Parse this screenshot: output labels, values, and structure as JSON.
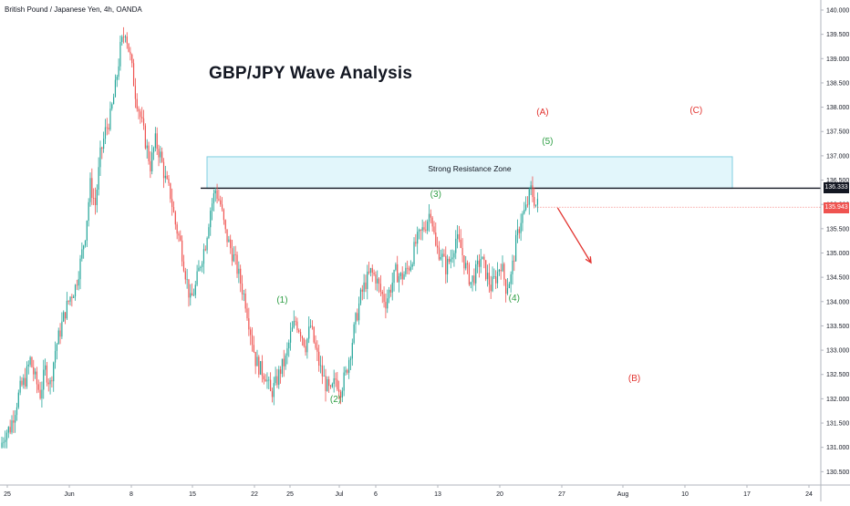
{
  "header": {
    "symbol_title": "British Pound / Japanese Yen, 4h, OANDA"
  },
  "annotation": {
    "title": "GBP/JPY Wave Analysis",
    "zone_label": "Strong Resistance Zone"
  },
  "price_tags": {
    "resistance": "136.333",
    "last": "135.943"
  },
  "colors": {
    "up": "#26a69a",
    "down": "#ef5350",
    "wave_green": "#2e9e44",
    "wave_red": "#e2332f",
    "zone_fill": "#e2f6fb",
    "zone_border": "#7fcde0",
    "tag_black": "#131722",
    "tag_red": "#ef5350"
  },
  "chart_data": {
    "type": "candlestick",
    "title": "GBP/JPY Wave Analysis",
    "symbol": "British Pound / Japanese Yen, 4h, OANDA",
    "ylim": [
      130.3,
      140.0
    ],
    "y_ticks": [
      "130.500",
      "131.000",
      "131.500",
      "132.000",
      "132.500",
      "133.000",
      "133.500",
      "134.000",
      "134.500",
      "135.000",
      "135.500",
      "136.000",
      "136.500",
      "137.000",
      "137.500",
      "138.000",
      "138.500",
      "139.000",
      "139.500",
      "140.000"
    ],
    "x_ticks": [
      "25",
      "Jun",
      "8",
      "15",
      "22",
      "25",
      "Jul",
      "6",
      "13",
      "20",
      "27",
      "Aug",
      "10",
      "17",
      "24"
    ],
    "price_path": [
      [
        0,
        131.0
      ],
      [
        3,
        131.3
      ],
      [
        6,
        131.4
      ],
      [
        9,
        131.8
      ],
      [
        12,
        132.2
      ],
      [
        15,
        132.4
      ],
      [
        18,
        132.8
      ],
      [
        21,
        132.4
      ],
      [
        24,
        132.1
      ],
      [
        27,
        132.6
      ],
      [
        30,
        132.3
      ],
      [
        33,
        133.0
      ],
      [
        36,
        133.4
      ],
      [
        39,
        133.8
      ],
      [
        42,
        134.1
      ],
      [
        45,
        134.3
      ],
      [
        48,
        134.8
      ],
      [
        51,
        135.4
      ],
      [
        54,
        136.4
      ],
      [
        57,
        136.0
      ],
      [
        60,
        137.0
      ],
      [
        63,
        137.5
      ],
      [
        66,
        137.8
      ],
      [
        69,
        138.4
      ],
      [
        72,
        139.2
      ],
      [
        75,
        139.6
      ],
      [
        78,
        139.0
      ],
      [
        81,
        138.3
      ],
      [
        84,
        137.8
      ],
      [
        87,
        137.3
      ],
      [
        90,
        136.8
      ],
      [
        93,
        137.3
      ],
      [
        96,
        137.0
      ],
      [
        99,
        136.5
      ],
      [
        102,
        136.2
      ],
      [
        105,
        135.6
      ],
      [
        108,
        135.2
      ],
      [
        111,
        134.6
      ],
      [
        114,
        134.0
      ],
      [
        117,
        134.3
      ],
      [
        120,
        134.8
      ],
      [
        123,
        135.2
      ],
      [
        126,
        135.9
      ],
      [
        129,
        136.3
      ],
      [
        132,
        136.0
      ],
      [
        135,
        135.4
      ],
      [
        138,
        135.1
      ],
      [
        141,
        134.8
      ],
      [
        144,
        134.4
      ],
      [
        147,
        134.0
      ],
      [
        150,
        133.4
      ],
      [
        153,
        132.8
      ],
      [
        156,
        132.6
      ],
      [
        159,
        132.5
      ],
      [
        162,
        132.1
      ],
      [
        165,
        132.3
      ],
      [
        168,
        132.6
      ],
      [
        171,
        132.8
      ],
      [
        174,
        133.3
      ],
      [
        177,
        133.6
      ],
      [
        180,
        133.4
      ],
      [
        183,
        133.1
      ],
      [
        186,
        133.5
      ],
      [
        189,
        133.0
      ],
      [
        192,
        132.6
      ],
      [
        195,
        132.3
      ],
      [
        198,
        132.1
      ],
      [
        201,
        132.4
      ],
      [
        204,
        132.2
      ],
      [
        207,
        132.5
      ],
      [
        210,
        133.0
      ],
      [
        213,
        133.6
      ],
      [
        216,
        134.1
      ],
      [
        219,
        134.4
      ],
      [
        222,
        134.6
      ],
      [
        225,
        134.5
      ],
      [
        228,
        134.2
      ],
      [
        231,
        134.0
      ],
      [
        234,
        134.3
      ],
      [
        237,
        134.6
      ],
      [
        240,
        134.5
      ],
      [
        243,
        134.6
      ],
      [
        246,
        134.8
      ],
      [
        249,
        135.2
      ],
      [
        252,
        135.4
      ],
      [
        255,
        135.6
      ],
      [
        258,
        135.9
      ],
      [
        261,
        135.1
      ],
      [
        264,
        135.0
      ],
      [
        267,
        134.7
      ],
      [
        270,
        134.9
      ],
      [
        273,
        135.3
      ],
      [
        276,
        135.1
      ],
      [
        279,
        134.7
      ],
      [
        282,
        134.4
      ],
      [
        285,
        134.6
      ],
      [
        288,
        134.9
      ],
      [
        291,
        134.6
      ],
      [
        294,
        134.3
      ],
      [
        297,
        134.5
      ],
      [
        300,
        134.8
      ],
      [
        303,
        134.3
      ],
      [
        306,
        134.5
      ],
      [
        309,
        135.2
      ],
      [
        312,
        135.7
      ],
      [
        315,
        135.9
      ],
      [
        318,
        136.3
      ],
      [
        321,
        136.0
      ]
    ],
    "resistance_zone": [
      136.33,
      136.98
    ],
    "resistance_level": 136.333,
    "last_price": 135.943,
    "wave_labels": [
      {
        "label": "(1)",
        "idx": 168,
        "price": 134.02,
        "color": "green"
      },
      {
        "label": "(2)",
        "idx": 200,
        "price": 131.97,
        "color": "green"
      },
      {
        "label": "(3)",
        "idx": 260,
        "price": 136.2,
        "color": "green"
      },
      {
        "label": "(4)",
        "idx": 307,
        "price": 134.06,
        "color": "green"
      },
      {
        "label": "(5)",
        "idx": 327,
        "price": 137.28,
        "color": "green"
      },
      {
        "label": "(A)",
        "idx": 324,
        "price": 137.88,
        "color": "red"
      },
      {
        "label": "(B)",
        "idx": 379,
        "price": 132.4,
        "color": "red"
      },
      {
        "label": "(C)",
        "idx": 416,
        "price": 137.92,
        "color": "red"
      }
    ],
    "arrow": {
      "from": [
        333,
        135.93
      ],
      "to": [
        353,
        134.8
      ]
    }
  }
}
